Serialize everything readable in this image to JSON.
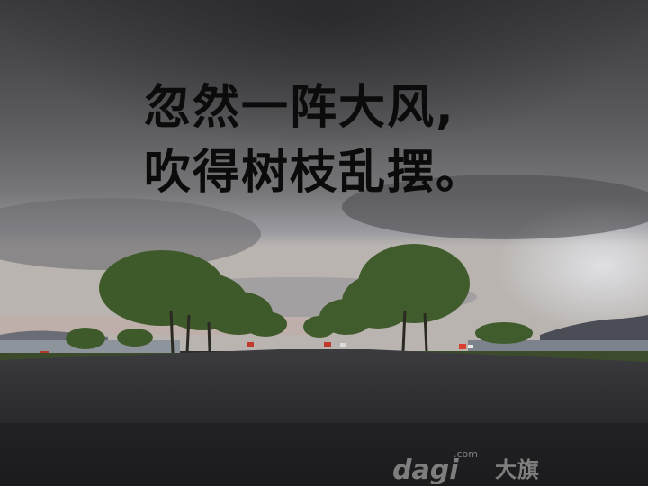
{
  "caption": {
    "line1": "忽然一阵大风,",
    "line2": "吹得树枝乱摆。"
  },
  "watermark": {
    "logo_text": "dagi",
    "brand": "大旗",
    "domain": ".com"
  }
}
